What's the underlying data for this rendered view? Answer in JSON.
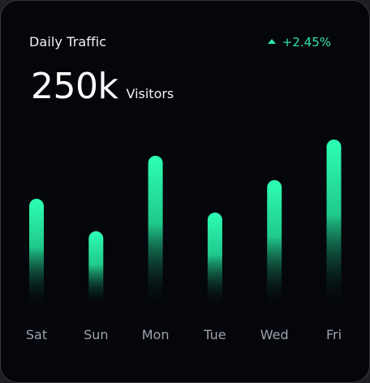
{
  "card": {
    "title": "Daily Traffic",
    "change": "+2.45%",
    "value": "250k",
    "unit": "Visitors"
  },
  "colors": {
    "background": "#05060b",
    "accent": "#2ee6a6",
    "label": "#9ea1ab"
  },
  "chart_data": {
    "type": "bar",
    "categories": [
      "Sat",
      "Sun",
      "Mon",
      "Tue",
      "Wed",
      "Fri"
    ],
    "values": [
      132,
      92,
      185,
      115,
      155,
      205
    ],
    "title": "",
    "xlabel": "",
    "ylabel": "",
    "ylim": [
      0,
      205
    ],
    "grid": false
  }
}
